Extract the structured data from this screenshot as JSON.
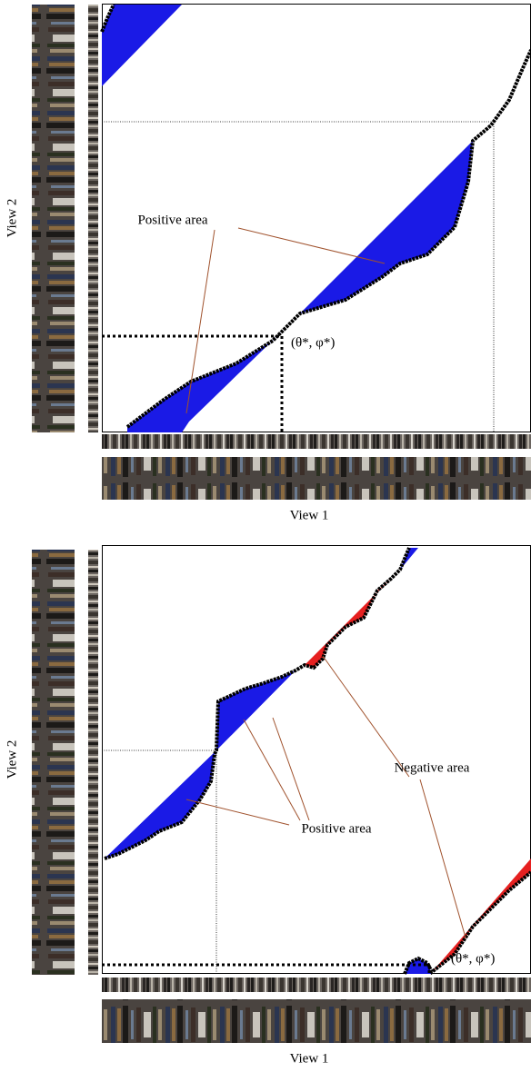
{
  "panels": [
    {
      "y_label": "View 2",
      "x_label": "View 1",
      "annotations": [
        "Positive area",
        "(θ*, φ*)"
      ]
    },
    {
      "y_label": "View 2",
      "x_label": "View 1",
      "annotations": [
        "Negative area",
        "Positive area",
        "(θ*, φ*)"
      ]
    }
  ]
}
